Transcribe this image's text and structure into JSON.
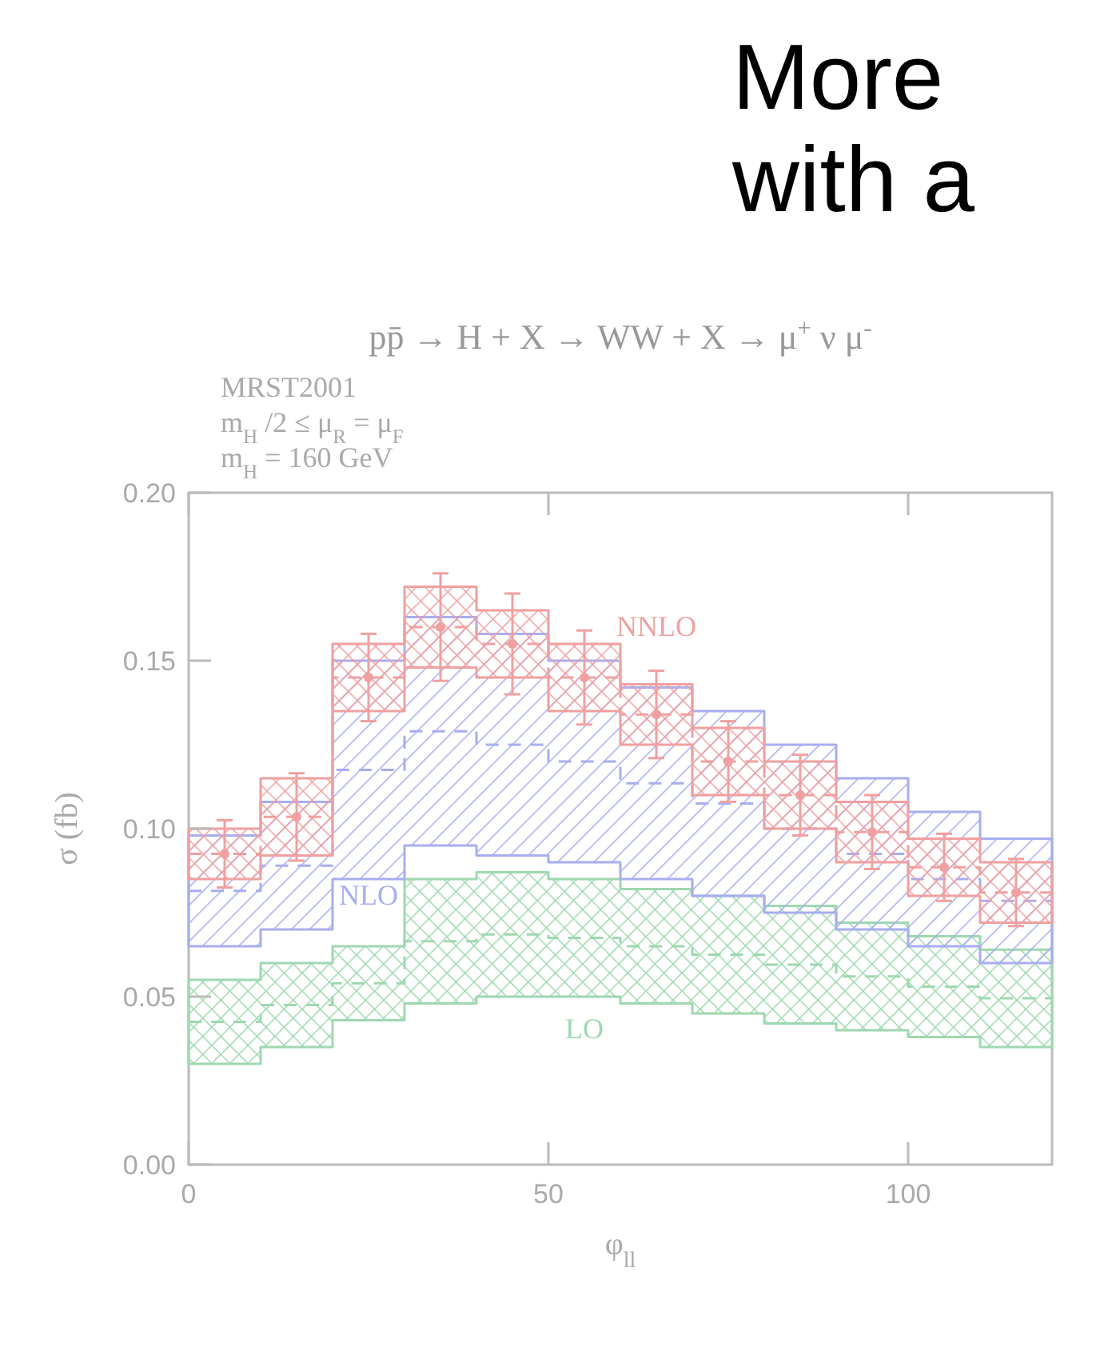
{
  "chart_data": {
    "type": "step",
    "title": "pp̄ → H + X → WW + X → μ$^{+}$ν μ$^{-}$",
    "xlabel": "φ$_{ll}$",
    "ylabel": "σ (fb)",
    "annotations": [
      "MRST2001",
      "m$_{H}$/2 ≤ μ$_{R}$ = μ$_{F}$",
      "m$_{H}$ = 160 GeV",
      "More",
      "with a"
    ],
    "x": [
      0,
      10,
      20,
      30,
      40,
      50,
      60,
      70,
      80,
      90,
      100,
      110,
      120
    ],
    "xlim": [
      0,
      120
    ],
    "xticks": [
      0,
      50,
      100
    ],
    "ylim": [
      0,
      0.2
    ],
    "yticks": [
      {
        "value": 0,
        "label": "0.00"
      },
      0.05,
      {
        "value": 0.1,
        "label": "0.10"
      },
      0.15,
      {
        "value": 0.2,
        "label": "0.20"
      }
    ],
    "line_style": "dashed",
    "series": [
      {
        "name": "LO",
        "color": "#9fd8b0",
        "values": [
          0.0425,
          0.0475,
          0.054,
          0.0665,
          0.0685,
          0.0675,
          0.065,
          0.0625,
          0.0595,
          0.056,
          0.053,
          0.0495,
          0.0495
        ],
        "lower": [
          0.03,
          0.035,
          0.043,
          0.048,
          0.05,
          0.05,
          0.048,
          0.045,
          0.042,
          0.04,
          0.038,
          0.035,
          0.035
        ],
        "upper": [
          0.055,
          0.06,
          0.065,
          0.085,
          0.087,
          0.085,
          0.082,
          0.08,
          0.077,
          0.072,
          0.068,
          0.064,
          0.064
        ]
      },
      {
        "name": "NLO",
        "color": "#a8aef0",
        "values": [
          0.0815,
          0.089,
          0.1175,
          0.129,
          0.125,
          0.12,
          0.1135,
          0.1075,
          0.1,
          0.0925,
          0.085,
          0.0785,
          0.0785
        ],
        "lower": [
          0.065,
          0.07,
          0.085,
          0.095,
          0.092,
          0.09,
          0.085,
          0.08,
          0.075,
          0.07,
          0.065,
          0.06,
          0.06
        ],
        "upper": [
          0.098,
          0.108,
          0.15,
          0.163,
          0.158,
          0.15,
          0.142,
          0.135,
          0.125,
          0.115,
          0.105,
          0.097,
          0.097
        ]
      },
      {
        "name": "NNLO",
        "color": "#f0a0a0",
        "values": [
          0.0925,
          0.1035,
          0.145,
          0.16,
          0.155,
          0.145,
          0.134,
          0.12,
          0.11,
          0.099,
          0.0885,
          0.081,
          0.081
        ],
        "lower": [
          0.085,
          0.092,
          0.135,
          0.148,
          0.145,
          0.135,
          0.125,
          0.11,
          0.1,
          0.09,
          0.08,
          0.072,
          0.072
        ],
        "upper": [
          0.1,
          0.115,
          0.155,
          0.172,
          0.165,
          0.155,
          0.143,
          0.13,
          0.12,
          0.108,
          0.097,
          0.09,
          0.09
        ]
      },
      {
        "type": "scatter",
        "marker": "circle",
        "color": "#f0a0a0",
        "x": [
          5,
          15,
          25,
          35,
          45,
          55,
          65,
          75,
          85,
          95,
          105,
          115
        ],
        "values": [
          0.0925,
          0.1035,
          0.145,
          0.16,
          0.155,
          0.145,
          0.134,
          0.12,
          0.11,
          0.099,
          0.0885,
          0.081
        ],
        "errors": [
          0.01,
          0.013,
          0.013,
          0.016,
          0.015,
          0.014,
          0.013,
          0.012,
          0.012,
          0.011,
          0.01,
          0.01
        ]
      }
    ]
  }
}
